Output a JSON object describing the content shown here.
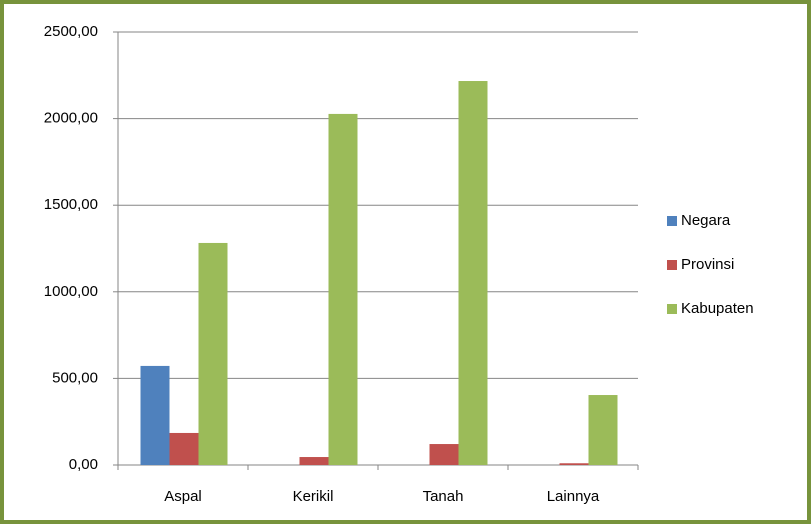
{
  "chart_data": {
    "type": "bar",
    "categories": [
      "Aspal",
      "Kerikil",
      "Tanah",
      "Lainnya"
    ],
    "series": [
      {
        "name": "Negara",
        "color": "#4f81bd",
        "values": [
          572,
          0,
          0,
          0
        ]
      },
      {
        "name": "Provinsi",
        "color": "#c0504d",
        "values": [
          185,
          46,
          121,
          10
        ]
      },
      {
        "name": "Kabupaten",
        "color": "#9bbb59",
        "values": [
          1282,
          2027,
          2217,
          404
        ]
      }
    ],
    "ylim": [
      0,
      2500
    ],
    "yticks": [
      {
        "value": 0,
        "label": "0,00"
      },
      {
        "value": 500,
        "label": "500,00"
      },
      {
        "value": 1000,
        "label": "1000,00"
      },
      {
        "value": 1500,
        "label": "1500,00"
      },
      {
        "value": 2000,
        "label": "2000,00"
      },
      {
        "value": 2500,
        "label": "2500,00"
      }
    ],
    "grid": true,
    "legend": "right"
  }
}
